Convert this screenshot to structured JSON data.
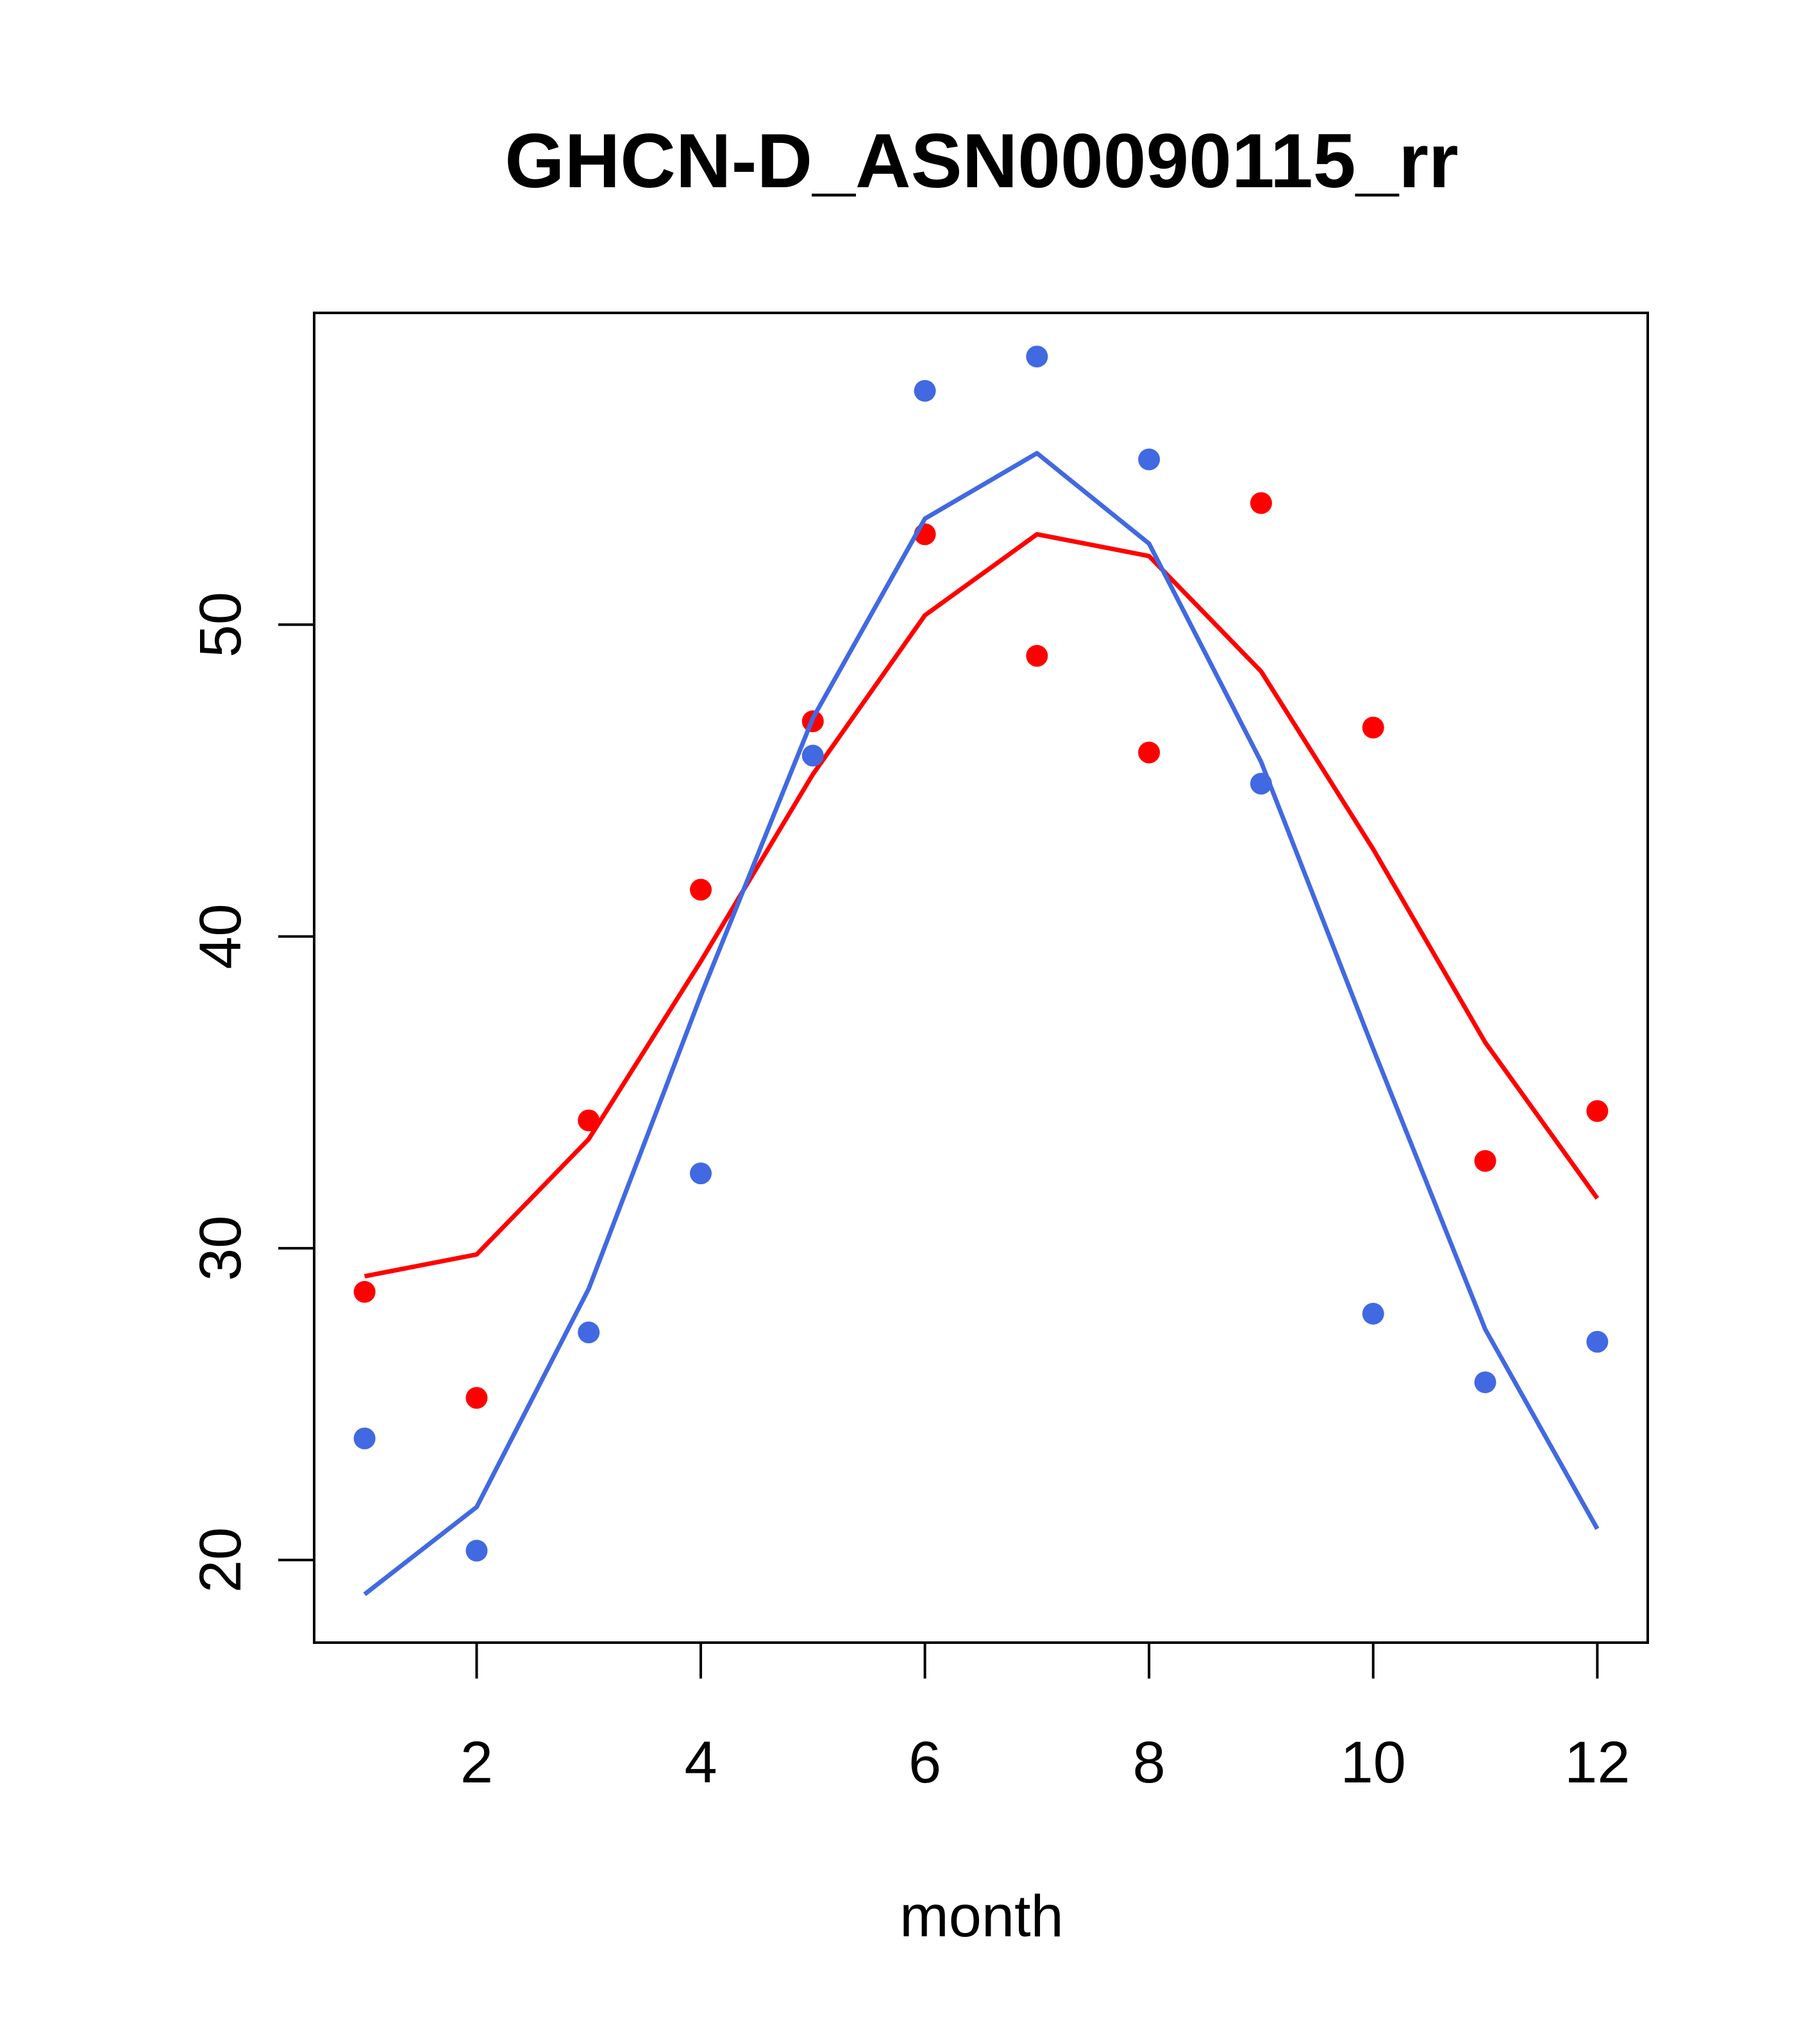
{
  "chart_data": {
    "type": "scatter",
    "title": "GHCN-D_ASN00090115_rr",
    "xlabel": "month",
    "ylabel": "",
    "xlim": [
      0.55,
      12.45
    ],
    "ylim": [
      17.35,
      60.0
    ],
    "x_ticks": [
      2,
      4,
      6,
      8,
      10,
      12
    ],
    "y_ticks": [
      20,
      30,
      40,
      50
    ],
    "grid": false,
    "legend": "none",
    "series": [
      {
        "color": "#FF0000",
        "x": [
          1,
          2,
          3,
          4,
          5,
          6,
          7,
          8,
          9,
          10,
          11,
          12
        ],
        "points": [
          28.6,
          25.2,
          34.1,
          41.5,
          46.9,
          52.9,
          49.0,
          45.9,
          53.9,
          46.7,
          32.8,
          34.4
        ],
        "line": [
          29.1,
          29.8,
          33.5,
          39.2,
          45.2,
          50.3,
          52.9,
          52.2,
          48.5,
          42.8,
          36.6,
          31.6
        ]
      },
      {
        "color": "#4169E1",
        "x": [
          1,
          2,
          3,
          4,
          5,
          6,
          7,
          8,
          9,
          10,
          11,
          12
        ],
        "points": [
          23.9,
          20.3,
          27.3,
          32.4,
          45.8,
          57.5,
          58.6,
          55.3,
          44.9,
          27.9,
          25.7,
          27.0
        ],
        "line": [
          18.9,
          21.7,
          28.7,
          38.1,
          47.0,
          53.4,
          55.5,
          52.6,
          45.6,
          36.4,
          27.4,
          21.0
        ]
      }
    ]
  }
}
